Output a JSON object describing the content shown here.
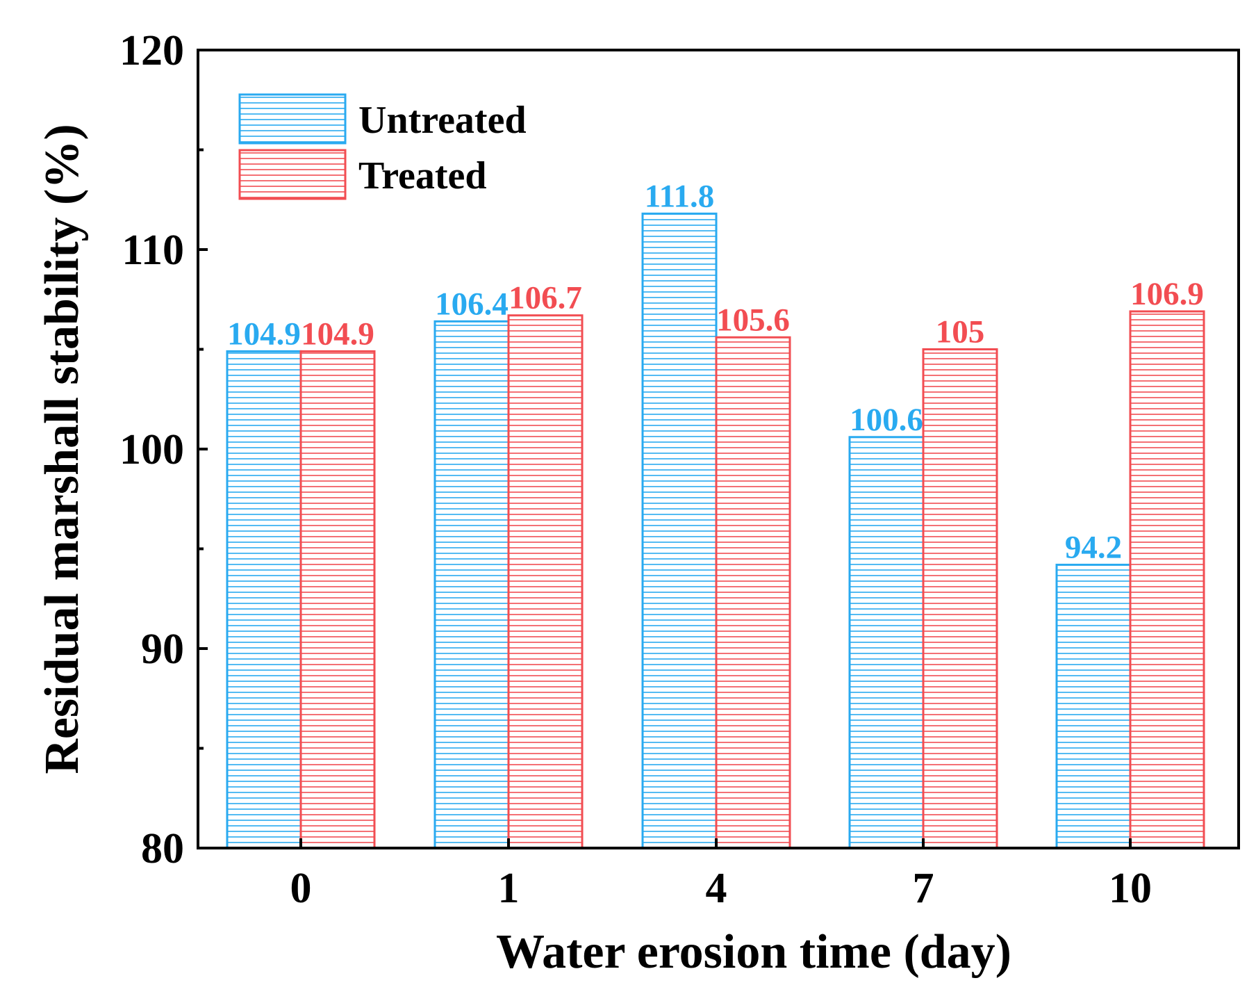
{
  "chart_data": {
    "type": "bar",
    "title": "",
    "xlabel": "Water erosion time (day)",
    "ylabel": "Residual marshall stability (%)",
    "categories": [
      "0",
      "1",
      "4",
      "7",
      "10"
    ],
    "ylim": [
      80,
      120
    ],
    "yticks": [
      "80",
      "90",
      "100",
      "110",
      "120"
    ],
    "grid": false,
    "legend_position": "top-left",
    "series": [
      {
        "name": "Untreated",
        "color": "#29aaf0",
        "values": [
          104.9,
          106.4,
          111.8,
          100.6,
          94.2
        ],
        "labels": [
          "104.9",
          "106.4",
          "111.8",
          "100.6",
          "94.2"
        ]
      },
      {
        "name": "Treated",
        "color": "#f24d52",
        "values": [
          104.9,
          106.7,
          105.6,
          105,
          106.9
        ],
        "labels": [
          "104.9",
          "106.7",
          "105.6",
          "105",
          "106.9"
        ]
      }
    ]
  }
}
